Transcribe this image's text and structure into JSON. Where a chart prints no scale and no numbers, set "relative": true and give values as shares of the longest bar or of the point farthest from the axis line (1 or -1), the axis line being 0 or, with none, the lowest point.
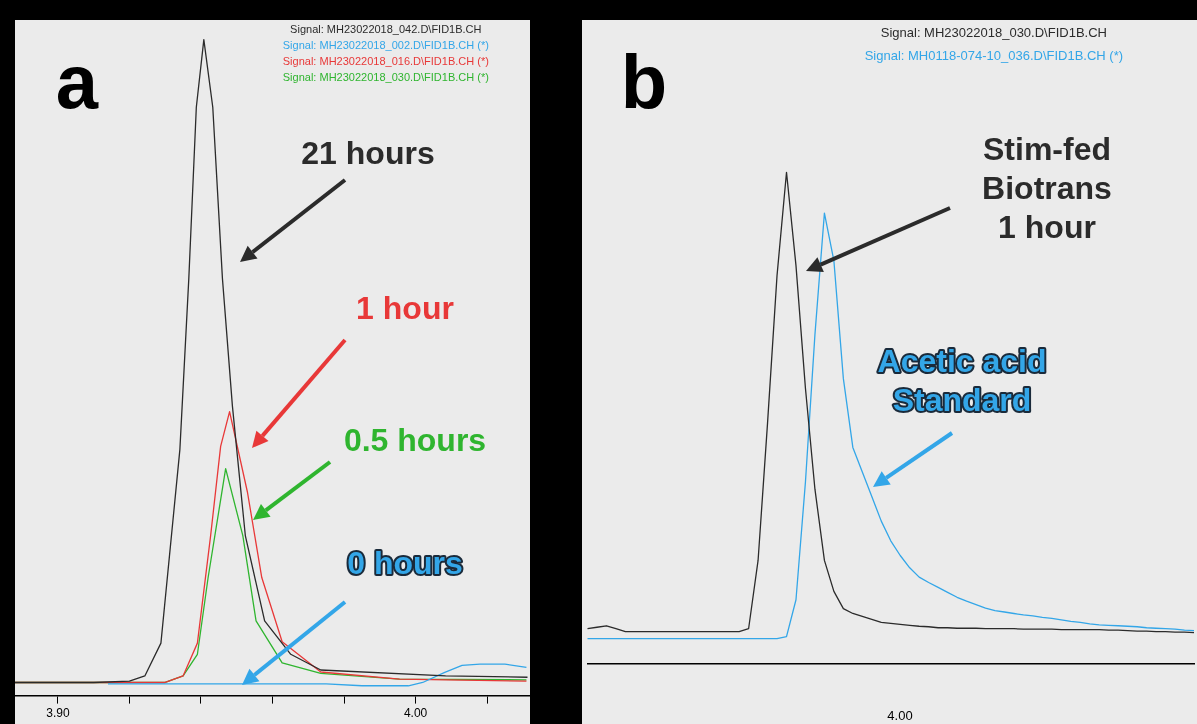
{
  "chart_data": [
    {
      "type": "line",
      "title": "a",
      "relative": true,
      "legend": "top right",
      "grid": false,
      "xlim": [
        3.888,
        4.032
      ],
      "xticks": [
        {
          "value": 3.9,
          "label": "3.90"
        },
        {
          "value": 3.92,
          "label": null
        },
        {
          "value": 3.94,
          "label": null
        },
        {
          "value": 3.96,
          "label": null
        },
        {
          "value": 3.98,
          "label": null
        },
        {
          "value": 4.0,
          "label": "4.00"
        },
        {
          "value": 4.02,
          "label": null
        }
      ],
      "series": [
        {
          "name": "Signal: MH23022018_042.D\\FID1B.CH",
          "color": "#2b2b2b",
          "x": [
            3.888,
            3.91,
            3.92,
            3.9243,
            3.9288,
            3.9341,
            3.9366,
            3.9387,
            3.9408,
            3.9433,
            3.946,
            3.9488,
            3.9524,
            3.9578,
            3.9651,
            3.9735,
            4.0084,
            4.0313
          ],
          "values": [
            0.02,
            0.02,
            0.022,
            0.03,
            0.08,
            0.375,
            0.636,
            0.897,
            1.0,
            0.897,
            0.636,
            0.441,
            0.244,
            0.114,
            0.063,
            0.039,
            0.03,
            0.028
          ]
        },
        {
          "name": "Signal: MH23022018_002.D\\FID1B.CH (*)",
          "color": "#33a6e8",
          "x": [
            3.914,
            3.975,
            3.985,
            3.998,
            4.002,
            4.008,
            4.013,
            4.018,
            4.025,
            4.031
          ],
          "values": [
            0.018,
            0.018,
            0.015,
            0.015,
            0.02,
            0.035,
            0.046,
            0.048,
            0.048,
            0.043
          ]
        },
        {
          "name": "Signal: MH23022018_016.D\\FID1B.CH (*)",
          "color": "#e83838",
          "x": [
            3.888,
            3.93,
            3.935,
            3.939,
            3.9427,
            3.9455,
            3.948,
            3.953,
            3.957,
            3.9627,
            3.9735,
            3.9955,
            4.031
          ],
          "values": [
            0.02,
            0.02,
            0.03,
            0.08,
            0.244,
            0.38,
            0.433,
            0.31,
            0.18,
            0.082,
            0.036,
            0.025,
            0.022
          ]
        },
        {
          "name": "Signal: MH23022018_030.D\\FID1B.CH (*)",
          "color": "#2fb52f",
          "x": [
            3.888,
            3.93,
            3.935,
            3.939,
            3.942,
            3.9469,
            3.9517,
            3.9554,
            3.9627,
            3.9735,
            3.9955,
            4.031
          ],
          "values": [
            0.02,
            0.02,
            0.03,
            0.063,
            0.18,
            0.346,
            0.244,
            0.114,
            0.05,
            0.034,
            0.025,
            0.024
          ]
        }
      ],
      "annotations": [
        "21 hours",
        "1 hour",
        "0.5 hours",
        "0 hours"
      ]
    },
    {
      "type": "line",
      "title": "b",
      "relative": true,
      "legend": "top right",
      "grid": false,
      "categories": [
        null,
        null,
        null,
        null,
        null,
        null,
        null,
        null,
        null,
        null,
        null,
        null,
        null,
        null,
        null,
        null,
        null,
        null,
        null,
        null,
        null,
        null,
        null,
        null,
        null,
        null,
        null,
        null,
        null,
        null,
        null,
        null,
        null,
        null,
        null,
        null,
        null,
        null,
        null,
        null,
        null,
        null,
        null,
        null,
        null,
        null,
        null,
        null,
        null,
        null,
        null,
        null,
        null,
        null,
        null,
        null,
        null,
        null,
        null,
        null,
        null,
        null,
        null,
        null,
        null
      ],
      "series": [
        {
          "name": "Signal: MH23022018_030.D\\FID1B.CH",
          "color": "#2b2b2b",
          "values": [
            0.071,
            0.074,
            0.077,
            0.071,
            0.065,
            0.065,
            0.065,
            0.065,
            0.065,
            0.065,
            0.065,
            0.065,
            0.065,
            0.065,
            0.065,
            0.065,
            0.065,
            0.071,
            0.21,
            0.49,
            0.79,
            1.0,
            0.81,
            0.56,
            0.355,
            0.21,
            0.147,
            0.112,
            0.102,
            0.096,
            0.09,
            0.084,
            0.082,
            0.08,
            0.078,
            0.076,
            0.075,
            0.073,
            0.073,
            0.072,
            0.072,
            0.072,
            0.071,
            0.071,
            0.071,
            0.071,
            0.07,
            0.07,
            0.07,
            0.07,
            0.069,
            0.069,
            0.069,
            0.069,
            0.069,
            0.068,
            0.068,
            0.067,
            0.066,
            0.066,
            0.065,
            0.065,
            0.064,
            0.064,
            0.063
          ]
        },
        {
          "name": "Signal: MH0118-074-10_036.D\\FID1B.CH (*)",
          "color": "#33a6e8",
          "values": [
            0.051,
            0.051,
            0.051,
            0.051,
            0.051,
            0.051,
            0.051,
            0.051,
            0.051,
            0.051,
            0.051,
            0.051,
            0.051,
            0.051,
            0.051,
            0.051,
            0.051,
            0.051,
            0.051,
            0.051,
            0.051,
            0.055,
            0.13,
            0.37,
            0.67,
            0.917,
            0.82,
            0.58,
            0.44,
            0.39,
            0.34,
            0.29,
            0.25,
            0.22,
            0.195,
            0.176,
            0.165,
            0.155,
            0.145,
            0.135,
            0.127,
            0.12,
            0.113,
            0.108,
            0.105,
            0.102,
            0.099,
            0.097,
            0.094,
            0.092,
            0.089,
            0.086,
            0.084,
            0.081,
            0.079,
            0.078,
            0.077,
            0.076,
            0.075,
            0.073,
            0.072,
            0.071,
            0.07,
            0.068,
            0.067
          ]
        }
      ],
      "annotations": [
        "Stim-fed\nBiotrans\n1 hour",
        "Acetic acid\nStandard",
        "4.00"
      ]
    }
  ]
}
